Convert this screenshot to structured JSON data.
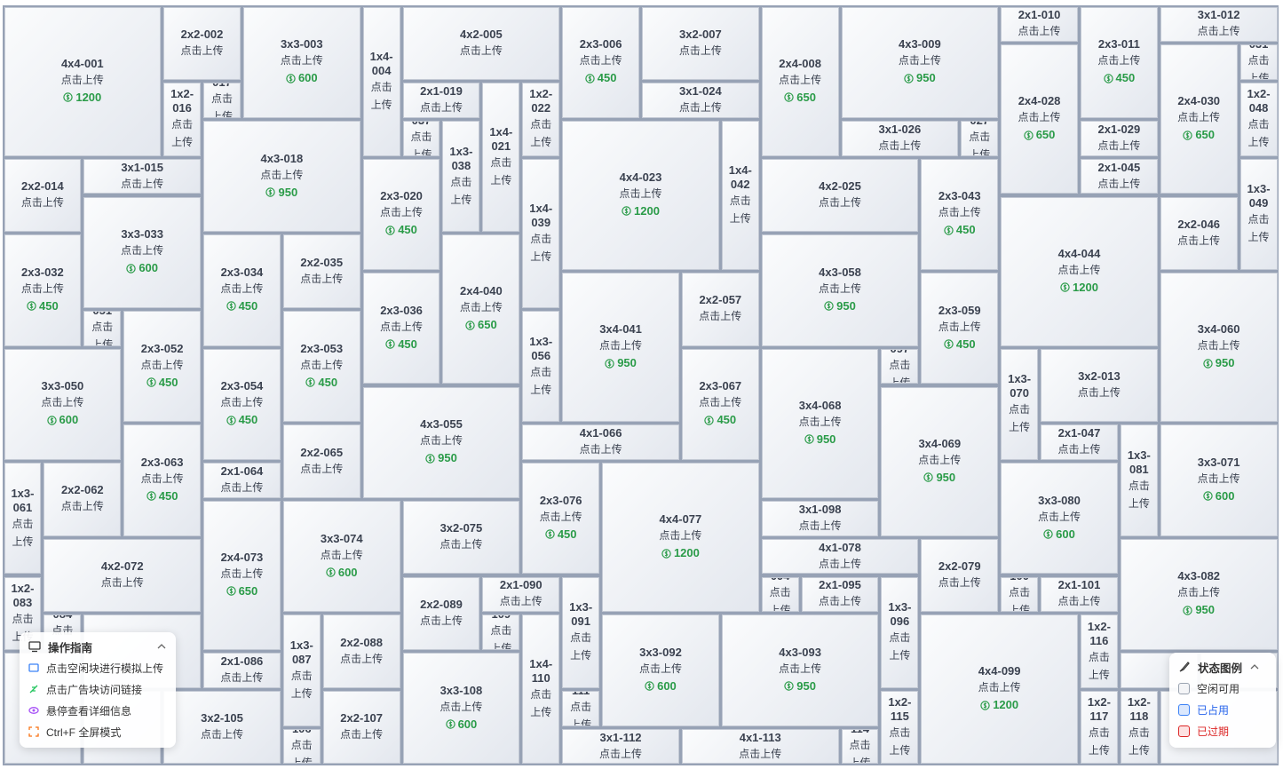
{
  "upload_text": "点击上传",
  "blocks": [
    {
      "label": "4x4-001",
      "price": 1200
    },
    {
      "label": "2x2-002"
    },
    {
      "label": "3x3-003",
      "price": 600
    },
    {
      "label": "1x4-004"
    },
    {
      "label": "4x2-005"
    },
    {
      "label": "2x3-006",
      "price": 450
    },
    {
      "label": "3x2-007"
    },
    {
      "label": "2x4-008",
      "price": 650
    },
    {
      "label": "4x3-009",
      "price": 950
    },
    {
      "label": "2x1-010"
    },
    {
      "label": "2x3-011",
      "price": 450
    },
    {
      "label": "3x1-012"
    },
    {
      "label": "3x2-013"
    },
    {
      "label": "2x2-014"
    },
    {
      "label": "3x1-015"
    },
    {
      "label": "1x2-016"
    },
    {
      "label": "017"
    },
    {
      "label": "4x3-018",
      "price": 950
    },
    {
      "label": "2x1-019"
    },
    {
      "label": "2x3-020",
      "price": 450
    },
    {
      "label": "1x4-021"
    },
    {
      "label": "1x2-022"
    },
    {
      "label": "4x4-023",
      "price": 1200
    },
    {
      "label": "3x1-024"
    },
    {
      "label": "4x2-025"
    },
    {
      "label": "3x1-026"
    },
    {
      "label": "027"
    },
    {
      "label": "2x4-028",
      "price": 650
    },
    {
      "label": "2x1-029"
    },
    {
      "label": "2x4-030",
      "price": 650
    },
    {
      "label": "031"
    },
    {
      "label": "2x3-032",
      "price": 450
    },
    {
      "label": "3x3-033",
      "price": 600
    },
    {
      "label": "2x3-034",
      "price": 450
    },
    {
      "label": "2x2-035"
    },
    {
      "label": "2x3-036",
      "price": 450
    },
    {
      "label": "037"
    },
    {
      "label": "1x3-038"
    },
    {
      "label": "1x4-039"
    },
    {
      "label": "2x4-040",
      "price": 650
    },
    {
      "label": "3x4-041",
      "price": 950
    },
    {
      "label": "1x4-042"
    },
    {
      "label": "2x3-043",
      "price": 450
    },
    {
      "label": "4x4-044",
      "price": 1200
    },
    {
      "label": "2x1-045"
    },
    {
      "label": "2x2-046"
    },
    {
      "label": "2x1-047"
    },
    {
      "label": "1x2-048"
    },
    {
      "label": "1x3-049"
    },
    {
      "label": "3x3-050",
      "price": 600
    },
    {
      "label": "051"
    },
    {
      "label": "2x3-052",
      "price": 450
    },
    {
      "label": "2x3-053",
      "price": 450
    },
    {
      "label": "2x3-054",
      "price": 450
    },
    {
      "label": "4x3-055",
      "price": 950
    },
    {
      "label": "1x3-056"
    },
    {
      "label": "2x2-057"
    },
    {
      "label": "4x3-058",
      "price": 950
    },
    {
      "label": "2x3-059",
      "price": 450
    },
    {
      "label": "3x4-060",
      "price": 950
    },
    {
      "label": "1x3-061"
    },
    {
      "label": "2x2-062"
    },
    {
      "label": "2x3-063",
      "price": 450
    },
    {
      "label": "2x1-064"
    },
    {
      "label": "2x2-065"
    },
    {
      "label": "4x1-066"
    },
    {
      "label": "2x3-067",
      "price": 450
    },
    {
      "label": "3x4-068",
      "price": 950
    },
    {
      "label": "3x4-069",
      "price": 950
    },
    {
      "label": "1x3-070"
    },
    {
      "label": "3x3-071",
      "price": 600
    },
    {
      "label": "4x2-072"
    },
    {
      "label": "2x4-073",
      "price": 650
    },
    {
      "label": "3x3-074",
      "price": 600
    },
    {
      "label": "3x2-075"
    },
    {
      "label": "2x3-076",
      "price": 450
    },
    {
      "label": "4x4-077",
      "price": 1200
    },
    {
      "label": "4x1-078"
    },
    {
      "label": "2x2-079"
    },
    {
      "label": "3x3-080",
      "price": 600
    },
    {
      "label": "1x3-081"
    },
    {
      "label": "4x3-082",
      "price": 950
    },
    {
      "label": "1x2-083"
    },
    {
      "label": "084"
    },
    {
      "label": "2x1-086"
    },
    {
      "label": "1x3-087"
    },
    {
      "label": "2x2-088"
    },
    {
      "label": "2x2-089"
    },
    {
      "label": "2x1-090"
    },
    {
      "label": "1x3-091"
    },
    {
      "label": "3x3-092",
      "price": 600
    },
    {
      "label": "4x3-093",
      "price": 950
    },
    {
      "label": "094"
    },
    {
      "label": "2x1-095"
    },
    {
      "label": "1x3-096"
    },
    {
      "label": "097"
    },
    {
      "label": "3x1-098"
    },
    {
      "label": "4x4-099",
      "price": 1200
    },
    {
      "label": "100"
    },
    {
      "label": "2x1-101"
    },
    {
      "label": "3x2-105"
    },
    {
      "label": "106"
    },
    {
      "label": "2x2-107"
    },
    {
      "label": "3x3-108",
      "price": 600
    },
    {
      "label": "109"
    },
    {
      "label": "1x4-110"
    },
    {
      "label": "111"
    },
    {
      "label": "3x1-112"
    },
    {
      "label": "4x1-113"
    },
    {
      "label": "114"
    },
    {
      "label": "1x2-115"
    },
    {
      "label": "1x2-116"
    },
    {
      "label": "1x2-117"
    },
    {
      "label": "1x2-118"
    }
  ],
  "guide": {
    "title": "操作指南",
    "items": [
      "点击空闲块进行模拟上传",
      "点击广告块访问链接",
      "悬停查看详细信息",
      "Ctrl+F 全屏模式"
    ]
  },
  "legend": {
    "title": "状态图例",
    "items": [
      "空闲可用",
      "已占用",
      "已过期"
    ]
  }
}
